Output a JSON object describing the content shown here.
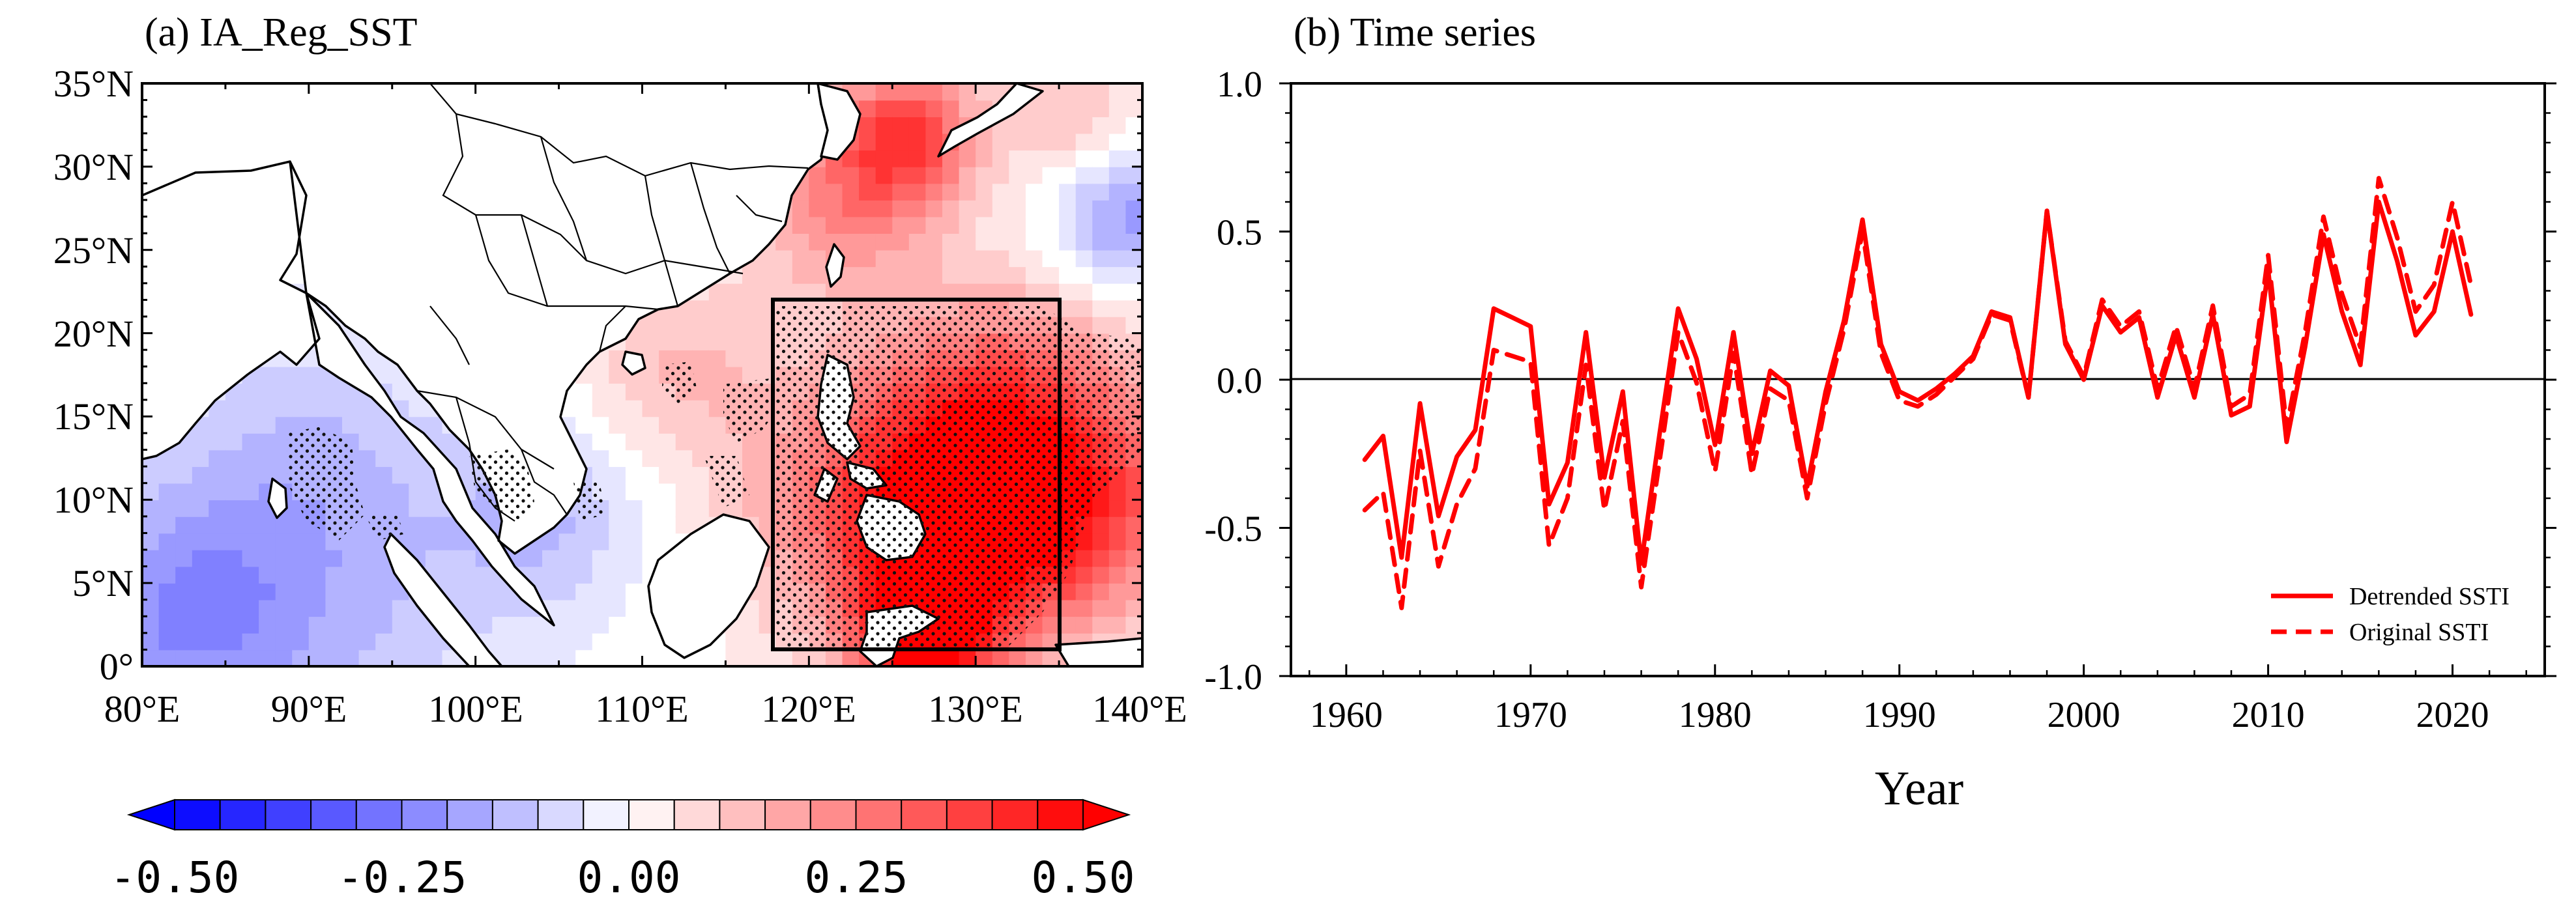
{
  "panels": {
    "a": {
      "title": "(a) IA_Reg_SST",
      "lat_labels": [
        "35°N",
        "30°N",
        "25°N",
        "20°N",
        "15°N",
        "10°N",
        "5°N",
        "0°"
      ],
      "lon_labels": [
        "80°E",
        "90°E",
        "100°E",
        "110°E",
        "120°E",
        "130°E",
        "140°E"
      ],
      "box": {
        "lon_min": 118,
        "lon_max": 135,
        "lat_min": 1,
        "lat_max": 22
      },
      "colorbar": {
        "ticks": [
          "-0.50",
          "-0.25",
          "0.00",
          "0.25",
          "0.50"
        ],
        "min": -0.5,
        "max": 0.5,
        "step": 0.05
      }
    },
    "b": {
      "title": "(b) Time series",
      "xlabel": "Year"
    }
  },
  "colors": {
    "line": "#ff0000",
    "neg": "#0000ff",
    "pos": "#ff0000"
  },
  "chart_data": [
    {
      "type": "heatmap",
      "title": "(a) IA_Reg_SST",
      "x_range": [
        80,
        140
      ],
      "y_range": [
        0,
        35
      ],
      "x_unit": "°E",
      "y_unit": "°N",
      "value_range": [
        -0.5,
        0.5
      ],
      "anomaly_centers": [
        {
          "lon": 126,
          "lat": 32,
          "v": 0.33,
          "r": 3
        },
        {
          "lon": 125,
          "lat": 10,
          "v": 0.33,
          "r": 6
        },
        {
          "lon": 131,
          "lat": 8,
          "v": 0.3,
          "r": 5
        },
        {
          "lon": 127,
          "lat": 2,
          "v": 0.42,
          "r": 3
        },
        {
          "lon": 132,
          "lat": 16,
          "v": 0.24,
          "r": 5
        },
        {
          "lon": 122,
          "lat": 28,
          "v": 0.22,
          "r": 4
        },
        {
          "lon": 138,
          "lat": 10,
          "v": 0.22,
          "r": 5
        },
        {
          "lon": 112,
          "lat": 18,
          "v": 0.12,
          "r": 4
        },
        {
          "lon": 90,
          "lat": 5,
          "v": -0.14,
          "r": 8
        },
        {
          "lon": 82,
          "lat": 3,
          "v": -0.16,
          "r": 5
        },
        {
          "lon": 104,
          "lat": 9,
          "v": -0.12,
          "r": 4
        },
        {
          "lon": 139,
          "lat": 27,
          "v": -0.2,
          "r": 3
        },
        {
          "lon": 136,
          "lat": 33,
          "v": 0.12,
          "r": 3
        },
        {
          "lon": 90,
          "lat": 14,
          "v": -0.06,
          "r": 5
        }
      ]
    },
    {
      "type": "line",
      "title": "(b) Time series",
      "xlabel": "Year",
      "ylabel": "",
      "xlim": [
        1957,
        2025
      ],
      "ylim": [
        -1.0,
        1.0
      ],
      "xticks": [
        1960,
        1970,
        1980,
        1990,
        2000,
        2010,
        2020
      ],
      "yticks": [
        -1.0,
        -0.5,
        0.0,
        0.5,
        1.0
      ],
      "ytick_labels": [
        "-1.0",
        "-0.5",
        "0.0",
        "0.5",
        "1.0"
      ],
      "legend_position": "bottom-right",
      "x": [
        1961,
        1962,
        1963,
        1964,
        1965,
        1966,
        1967,
        1968,
        1969,
        1970,
        1971,
        1972,
        1973,
        1974,
        1975,
        1976,
        1977,
        1978,
        1979,
        1980,
        1981,
        1982,
        1983,
        1984,
        1985,
        1986,
        1987,
        1988,
        1989,
        1990,
        1991,
        1992,
        1993,
        1994,
        1995,
        1996,
        1997,
        1998,
        1999,
        2000,
        2001,
        2002,
        2003,
        2004,
        2005,
        2006,
        2007,
        2008,
        2009,
        2010,
        2011,
        2012,
        2013,
        2014,
        2015,
        2016,
        2017,
        2018,
        2019,
        2020,
        2021
      ],
      "series": [
        {
          "name": "Detrended SSTI",
          "style": "solid",
          "values": [
            -0.27,
            -0.19,
            -0.6,
            -0.08,
            -0.46,
            -0.26,
            -0.17,
            0.24,
            0.21,
            0.18,
            -0.42,
            -0.28,
            0.16,
            -0.33,
            -0.04,
            -0.62,
            -0.18,
            0.24,
            0.07,
            -0.22,
            0.16,
            -0.25,
            0.03,
            -0.02,
            -0.36,
            -0.04,
            0.2,
            0.54,
            0.12,
            -0.04,
            -0.07,
            -0.03,
            0.02,
            0.08,
            0.23,
            0.21,
            -0.06,
            0.57,
            0.12,
            0.0,
            0.25,
            0.16,
            0.21,
            -0.06,
            0.15,
            -0.06,
            0.22,
            -0.12,
            -0.09,
            0.37,
            -0.21,
            0.11,
            0.49,
            0.23,
            0.05,
            0.6,
            0.4,
            0.15,
            0.23,
            0.5,
            0.22
          ]
        },
        {
          "name": "Original SSTI",
          "style": "dashed",
          "values": [
            -0.44,
            -0.38,
            -0.77,
            -0.24,
            -0.63,
            -0.42,
            -0.3,
            0.1,
            0.08,
            0.06,
            -0.56,
            -0.4,
            0.05,
            -0.44,
            -0.14,
            -0.7,
            -0.27,
            0.16,
            -0.01,
            -0.31,
            0.09,
            -0.32,
            -0.03,
            -0.07,
            -0.4,
            -0.08,
            0.17,
            0.5,
            0.09,
            -0.07,
            -0.09,
            -0.05,
            0.01,
            0.07,
            0.22,
            0.2,
            -0.06,
            0.57,
            0.13,
            0.01,
            0.27,
            0.18,
            0.23,
            -0.03,
            0.18,
            -0.03,
            0.25,
            -0.09,
            -0.05,
            0.42,
            -0.16,
            0.16,
            0.55,
            0.29,
            0.11,
            0.68,
            0.48,
            0.23,
            0.32,
            0.6,
            0.32
          ]
        }
      ]
    }
  ]
}
